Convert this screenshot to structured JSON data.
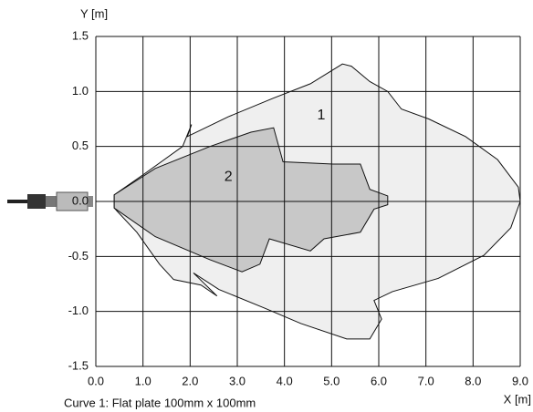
{
  "chart_data": {
    "type": "area",
    "x_label": "X [m]",
    "y_label": "Y [m]",
    "caption": "Curve 1: Flat plate 100mm x 100mm",
    "xlim": [
      0,
      9
    ],
    "ylim": [
      -1.5,
      1.5
    ],
    "xticks": [
      {
        "value": 0,
        "label": "0.0"
      },
      {
        "value": 1,
        "label": "1.0"
      },
      {
        "value": 2,
        "label": "2.0"
      },
      {
        "value": 3,
        "label": "3.0"
      },
      {
        "value": 4,
        "label": "4.0"
      },
      {
        "value": 5,
        "label": "5.0"
      },
      {
        "value": 6,
        "label": "6.0"
      },
      {
        "value": 7,
        "label": "7.0"
      },
      {
        "value": 8,
        "label": "8.0"
      },
      {
        "value": 9,
        "label": "9.0"
      }
    ],
    "yticks": [
      -1.5,
      {
        "value": -1,
        "label": "-1.0"
      },
      -0.5,
      {
        "value": 0,
        "label": "0.0"
      },
      0.5,
      {
        "value": 1,
        "label": "1.0"
      },
      1.5
    ],
    "grid": true,
    "series": [
      {
        "name": "1",
        "color": "#efefef",
        "x": [
          0.39,
          1.06,
          1.84,
          2.03,
          1.94,
          2.81,
          3.77,
          4.55,
          5.23,
          5.42,
          5.81,
          6.19,
          6.48,
          7.06,
          7.84,
          8.52,
          8.96,
          9.0,
          8.8,
          8.23,
          7.26,
          6.29,
          5.9,
          6.06,
          5.81,
          5.32,
          4.35,
          3.58,
          2.61,
          2.07,
          2.57,
          2.23,
          1.65,
          1.35,
          0.87,
          0.39
        ],
        "y": [
          0.06,
          0.26,
          0.5,
          0.7,
          0.59,
          0.77,
          0.94,
          1.07,
          1.25,
          1.23,
          1.09,
          1.0,
          0.84,
          0.75,
          0.59,
          0.38,
          0.13,
          0.0,
          -0.24,
          -0.49,
          -0.7,
          -0.82,
          -0.9,
          -1.07,
          -1.25,
          -1.25,
          -1.11,
          -0.97,
          -0.8,
          -0.65,
          -0.86,
          -0.76,
          -0.71,
          -0.57,
          -0.28,
          -0.06
        ],
        "label_x": 4.78,
        "label_y": 0.78
      },
      {
        "name": "2",
        "color": "#c8c8c8",
        "x": [
          0.39,
          1.26,
          2.42,
          3.29,
          3.77,
          3.97,
          5.03,
          5.61,
          5.81,
          6.19,
          6.19,
          5.9,
          5.61,
          4.84,
          4.55,
          3.68,
          3.48,
          3.1,
          2.42,
          1.26,
          0.39
        ],
        "y": [
          0.06,
          0.3,
          0.5,
          0.63,
          0.67,
          0.36,
          0.34,
          0.34,
          0.11,
          0.05,
          -0.03,
          -0.07,
          -0.28,
          -0.34,
          -0.45,
          -0.34,
          -0.57,
          -0.64,
          -0.53,
          -0.32,
          -0.06
        ],
        "label_x": 2.81,
        "label_y": 0.22
      }
    ]
  }
}
